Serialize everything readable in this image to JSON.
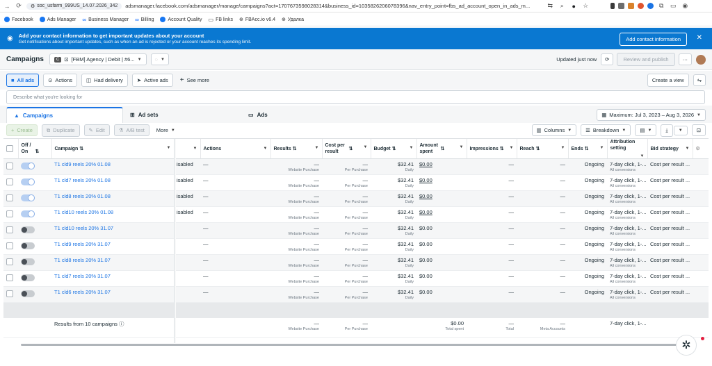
{
  "browser": {
    "profile": "soc_usfarm_999US_14.07.2026_342",
    "url": "adsmanager.facebook.com/adsmanager/manage/campaigns?act=1707673598028314&business_id=1035826206078396&nav_entry_point=fbs_ad_account_open_in_ads_m..."
  },
  "bookmarks": [
    {
      "label": "Facebook",
      "color": "#1877f2"
    },
    {
      "label": "Ads Manager",
      "color": "#1877f2"
    },
    {
      "label": "Business Manager",
      "color": "#0866ff"
    },
    {
      "label": "Billing",
      "color": "#0866ff"
    },
    {
      "label": "Account Quality",
      "color": "#1877f2"
    },
    {
      "label": "FB links",
      "color": "#555555"
    },
    {
      "label": "FBAcc.io v6.4",
      "color": "#333333"
    },
    {
      "label": "Удалка",
      "color": "#333333"
    }
  ],
  "banner": {
    "title": "Add your contact information to get important updates about your account",
    "subtitle": "Get notifications about important updates, such as when an ad is rejected or your account reaches its spending limit.",
    "button": "Add contact information"
  },
  "toolbar": {
    "title": "Campaigns",
    "account": "[FBM] Agency | Debit | #6...",
    "updated": "Updated just now",
    "review": "Review and publish"
  },
  "filters": {
    "all_ads": "All ads",
    "actions": "Actions",
    "had_delivery": "Had delivery",
    "active_ads": "Active ads",
    "see_more": "See more",
    "create_view": "Create a view",
    "search_placeholder": "Describe what you're looking for"
  },
  "levels": {
    "campaigns": "Campaigns",
    "adsets": "Ad sets",
    "ads": "Ads",
    "date_range": "Maximum: Jul 3, 2023 – Aug 3, 2026"
  },
  "actionbar": {
    "create": "Create",
    "duplicate": "Duplicate",
    "edit": "Edit",
    "ab_test": "A/B test",
    "more": "More",
    "columns": "Columns",
    "breakdown": "Breakdown"
  },
  "table": {
    "headers": {
      "off_on": "Off / On",
      "campaign": "Campaign",
      "actions": "Actions",
      "results": "Results",
      "cost_per_result": "Cost per result",
      "budget": "Budget",
      "amount_spent": "Amount spent",
      "impressions": "Impressions",
      "reach": "Reach",
      "ends": "Ends",
      "attribution": "Attribution setting",
      "bid_strategy": "Bid strategy"
    },
    "rows": [
      {
        "on": true,
        "name": "T1 cld9 reels 20% 01.08",
        "delivery": "isabled",
        "actions": "—",
        "results": "—",
        "results_sub": "Website Purchase",
        "cpr": "—",
        "cpr_sub": "Per Purchase",
        "budget": "$32.41",
        "budget_sub": "Daily",
        "spent": "$0.00",
        "impressions": "—",
        "reach": "—",
        "ends": "Ongoing",
        "attribution": "7-day click, 1-...",
        "attribution_sub": "All conversions",
        "bid": "Cost per result ..."
      },
      {
        "on": true,
        "name": "T1 cld7 reels 20% 01.08",
        "delivery": "isabled",
        "actions": "—",
        "results": "—",
        "results_sub": "Website Purchase",
        "cpr": "—",
        "cpr_sub": "Per Purchase",
        "budget": "$32.41",
        "budget_sub": "Daily",
        "spent": "$0.00",
        "impressions": "—",
        "reach": "—",
        "ends": "Ongoing",
        "attribution": "7-day click, 1-...",
        "attribution_sub": "All conversions",
        "bid": "Cost per result ..."
      },
      {
        "on": true,
        "name": "T1 cld8 reels 20% 01.08",
        "delivery": "isabled",
        "actions": "—",
        "results": "—",
        "results_sub": "Website Purchase",
        "cpr": "—",
        "cpr_sub": "Per Purchase",
        "budget": "$32.41",
        "budget_sub": "Daily",
        "spent": "$0.00",
        "impressions": "—",
        "reach": "—",
        "ends": "Ongoing",
        "attribution": "7-day click, 1-...",
        "attribution_sub": "All conversions",
        "bid": "Cost per result ..."
      },
      {
        "on": true,
        "name": "T1 cld10 reels 20% 01.08",
        "delivery": "isabled",
        "actions": "—",
        "results": "—",
        "results_sub": "Website Purchase",
        "cpr": "—",
        "cpr_sub": "Per Purchase",
        "budget": "$32.41",
        "budget_sub": "Daily",
        "spent": "$0.00",
        "impressions": "—",
        "reach": "—",
        "ends": "Ongoing",
        "attribution": "7-day click, 1-...",
        "attribution_sub": "All conversions",
        "bid": "Cost per result ..."
      },
      {
        "on": false,
        "name": "T1 cld10 reels 20% 31.07",
        "delivery": "",
        "actions": "—",
        "results": "—",
        "results_sub": "Website Purchase",
        "cpr": "—",
        "cpr_sub": "Per Purchase",
        "budget": "$32.41",
        "budget_sub": "Daily",
        "spent": "$0.00",
        "impressions": "—",
        "reach": "—",
        "ends": "Ongoing",
        "attribution": "7-day click, 1-...",
        "attribution_sub": "All conversions",
        "bid": "Cost per result ..."
      },
      {
        "on": false,
        "name": "T1 cld9 reels 20% 31.07",
        "delivery": "",
        "actions": "—",
        "results": "—",
        "results_sub": "Website Purchase",
        "cpr": "—",
        "cpr_sub": "Per Purchase",
        "budget": "$32.41",
        "budget_sub": "Daily",
        "spent": "$0.00",
        "impressions": "—",
        "reach": "—",
        "ends": "Ongoing",
        "attribution": "7-day click, 1-...",
        "attribution_sub": "All conversions",
        "bid": "Cost per result ..."
      },
      {
        "on": false,
        "name": "T1 cld8 reels 20% 31.07",
        "delivery": "",
        "actions": "—",
        "results": "—",
        "results_sub": "Website Purchase",
        "cpr": "—",
        "cpr_sub": "Per Purchase",
        "budget": "$32.41",
        "budget_sub": "Daily",
        "spent": "$0.00",
        "impressions": "—",
        "reach": "—",
        "ends": "Ongoing",
        "attribution": "7-day click, 1-...",
        "attribution_sub": "All conversions",
        "bid": "Cost per result ..."
      },
      {
        "on": false,
        "name": "T1 cld7 reels 20% 31.07",
        "delivery": "",
        "actions": "—",
        "results": "—",
        "results_sub": "Website Purchase",
        "cpr": "—",
        "cpr_sub": "Per Purchase",
        "budget": "$32.41",
        "budget_sub": "Daily",
        "spent": "$0.00",
        "impressions": "—",
        "reach": "—",
        "ends": "Ongoing",
        "attribution": "7-day click, 1-...",
        "attribution_sub": "All conversions",
        "bid": "Cost per result ..."
      },
      {
        "on": false,
        "name": "T1 cld6 reels 20% 31.07",
        "delivery": "",
        "actions": "—",
        "results": "—",
        "results_sub": "Website Purchase",
        "cpr": "—",
        "cpr_sub": "Per Purchase",
        "budget": "$32.41",
        "budget_sub": "Daily",
        "spent": "$0.00",
        "impressions": "—",
        "reach": "—",
        "ends": "Ongoing",
        "attribution": "7-day click, 1-...",
        "attribution_sub": "All conversions",
        "bid": "Cost per result ..."
      }
    ],
    "totals": {
      "label": "Results from 10 campaigns",
      "results": "—",
      "results_sub": "Website Purchase",
      "cpr": "—",
      "cpr_sub": "Per Purchase",
      "spent": "$0.00",
      "spent_sub": "Total spent",
      "impressions": "—",
      "impressions_sub": "Total",
      "reach": "—",
      "reach_sub": "Meta Accounts",
      "attribution": "7-day click, 1-..."
    }
  }
}
